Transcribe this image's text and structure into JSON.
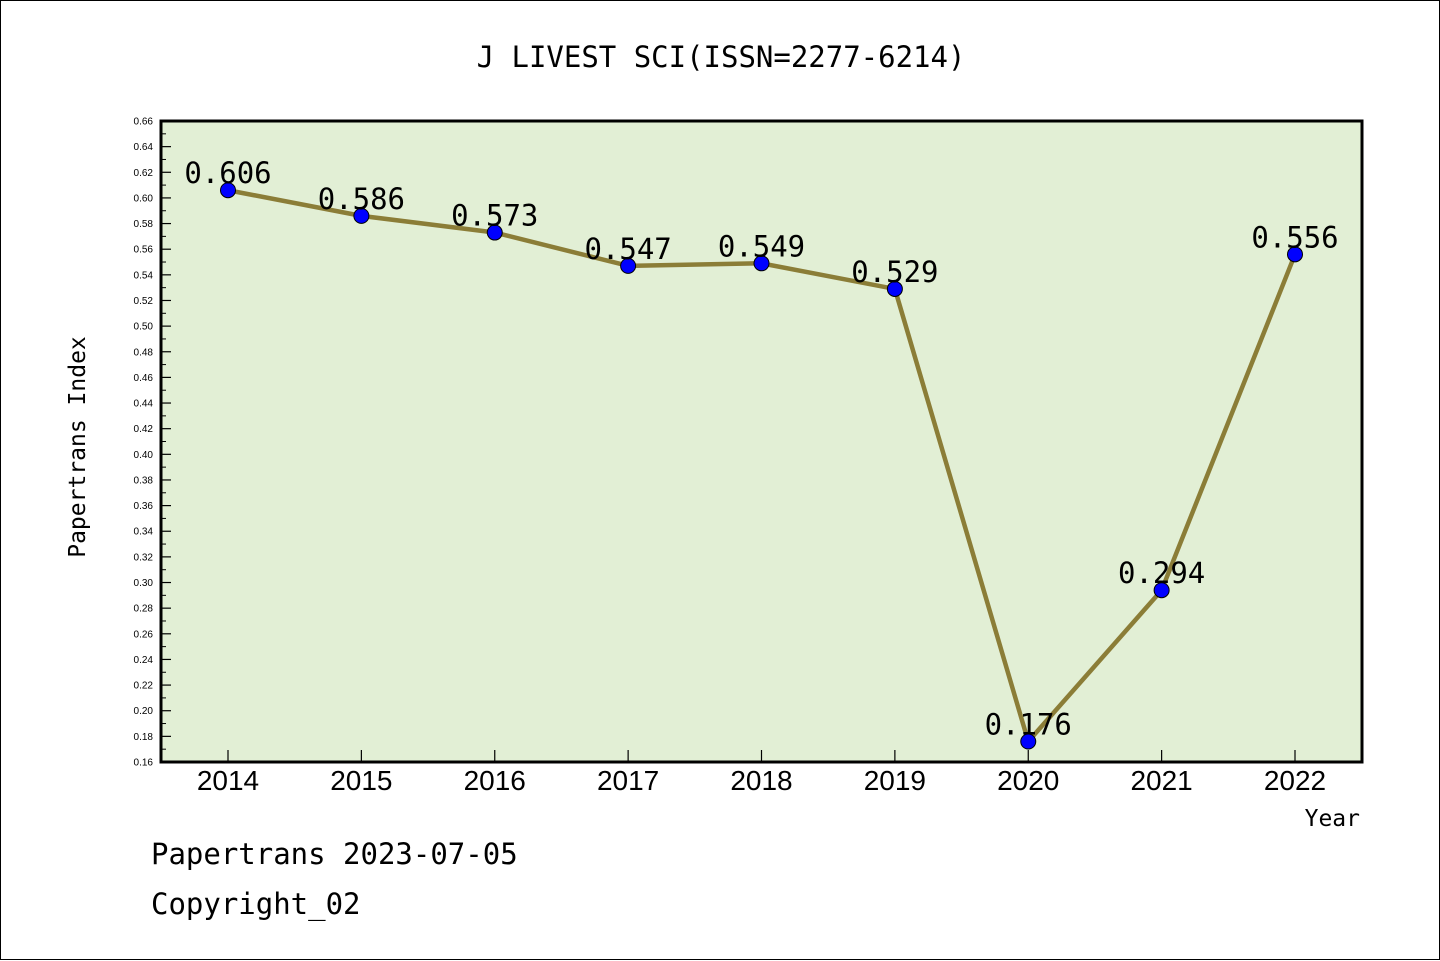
{
  "chart_data": {
    "type": "line",
    "title": "J LIVEST SCI(ISSN=2277-6214)",
    "xlabel": "Year",
    "ylabel": "Papertrans Index",
    "categories": [
      "2014",
      "2015",
      "2016",
      "2017",
      "2018",
      "2019",
      "2020",
      "2021",
      "2022"
    ],
    "series": [
      {
        "values": [
          0.606,
          0.586,
          0.573,
          0.547,
          0.549,
          0.529,
          0.176,
          0.294,
          0.556
        ]
      }
    ],
    "data_labels": [
      "0.606",
      "0.586",
      "0.573",
      "0.547",
      "0.549",
      "0.529",
      "0.176",
      "0.294",
      "0.556"
    ],
    "ylim": [
      0.16,
      0.66
    ],
    "yticks": [
      "0.16",
      "0.18",
      "0.20",
      "0.22",
      "0.24",
      "0.26",
      "0.28",
      "0.30",
      "0.32",
      "0.34",
      "0.36",
      "0.38",
      "0.40",
      "0.42",
      "0.44",
      "0.46",
      "0.48",
      "0.50",
      "0.52",
      "0.54",
      "0.56",
      "0.58",
      "0.60",
      "0.62",
      "0.64",
      "0.66"
    ],
    "grid": false,
    "legend": "none",
    "colors": {
      "plot_background": "#e2efd5",
      "line": "#8b7d37",
      "marker": "#0000ff"
    }
  },
  "footer": {
    "date_line": "Papertrans 2023-07-05",
    "copyright": "Copyright_02"
  }
}
